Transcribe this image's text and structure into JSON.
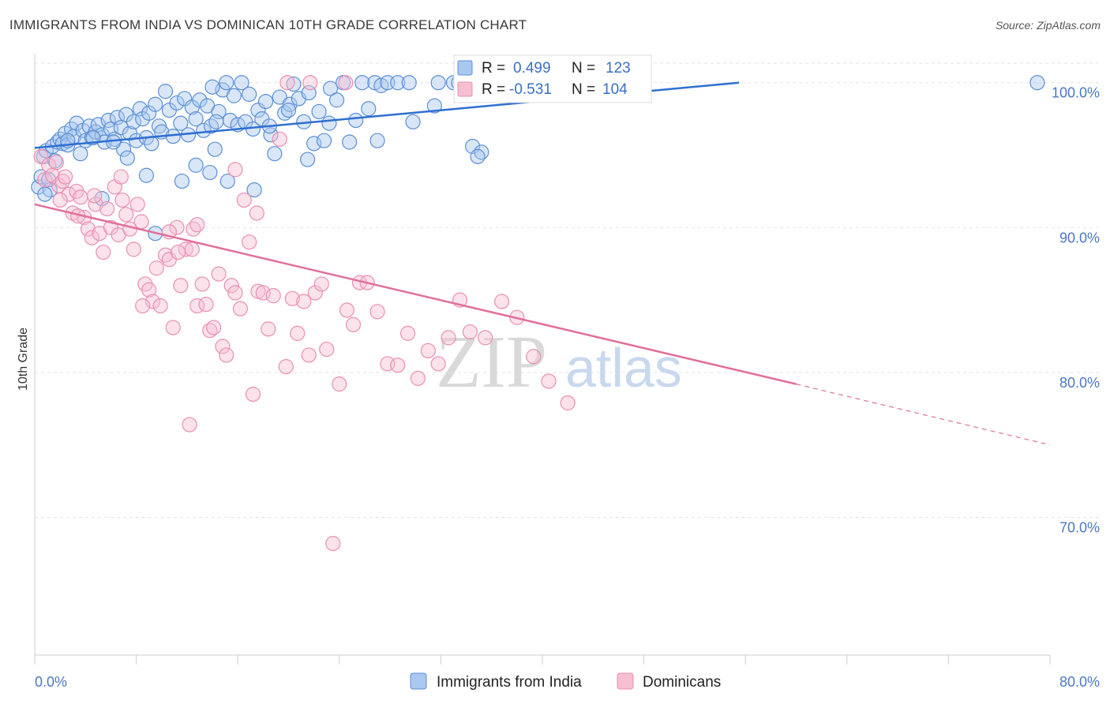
{
  "header": {
    "title": "IMMIGRANTS FROM INDIA VS DOMINICAN 10TH GRADE CORRELATION CHART",
    "source": "Source: ZipAtlas.com"
  },
  "watermark": {
    "zip": "ZIP",
    "atlas": "atlas"
  },
  "legend": {
    "india": {
      "r_label": "R =",
      "r_value": "0.499",
      "n_label": "N =",
      "n_value": "123"
    },
    "dominican": {
      "r_label": "R =",
      "r_value": "-0.531",
      "n_label": "N =",
      "n_value": "104"
    }
  },
  "bottom_legend": {
    "india": "Immigrants from India",
    "dominican": "Dominicans"
  },
  "colors": {
    "india_fill": "#a9c8f0",
    "india_stroke": "#5b8fd6",
    "india_line": "#2f6fd0",
    "dominican_fill": "#f6bfd2",
    "dominican_stroke": "#ea8fb0",
    "dominican_line": "#e0709a",
    "tick_text": "#4a78c4",
    "grid": "#e3e3e3"
  },
  "chart_data": {
    "type": "scatter",
    "title": "IMMIGRANTS FROM INDIA VS DOMINICAN 10TH GRADE CORRELATION CHART",
    "xlabel": "",
    "ylabel": "10th Grade",
    "xlim": [
      0,
      80
    ],
    "ylim": [
      60.5,
      102
    ],
    "x_ticks": [
      0,
      8,
      16,
      24,
      32,
      40,
      48,
      56,
      64,
      72,
      80
    ],
    "x_tick_labels": [
      "0.0%",
      "",
      "",
      "",
      "",
      "",
      "",
      "",
      "",
      "",
      "80.0%"
    ],
    "y_ticks": [
      70,
      80,
      90,
      100
    ],
    "y_tick_labels": [
      "70.0%",
      "80.0%",
      "90.0%",
      "100.0%"
    ],
    "grid": true,
    "legend_position": "top-center",
    "series": [
      {
        "name": "Immigrants from India",
        "R": 0.499,
        "N": 123,
        "trend": {
          "x0": 0,
          "y0": 95.5,
          "x1": 55.5,
          "y1": 100.0
        },
        "points": [
          [
            0.3,
            92.8
          ],
          [
            0.5,
            93.5
          ],
          [
            0.7,
            94.9
          ],
          [
            0.9,
            95.3
          ],
          [
            1.1,
            93.3
          ],
          [
            1.2,
            92.6
          ],
          [
            1.4,
            95.6
          ],
          [
            1.6,
            94.6
          ],
          [
            1.8,
            95.9
          ],
          [
            2.0,
            96.1
          ],
          [
            2.2,
            95.8
          ],
          [
            2.4,
            96.5
          ],
          [
            2.6,
            95.7
          ],
          [
            2.9,
            96.8
          ],
          [
            3.1,
            96.3
          ],
          [
            3.3,
            97.2
          ],
          [
            3.6,
            95.1
          ],
          [
            3.8,
            96.7
          ],
          [
            4.0,
            96.0
          ],
          [
            4.3,
            97.0
          ],
          [
            4.5,
            96.2
          ],
          [
            4.8,
            96.6
          ],
          [
            5.0,
            97.1
          ],
          [
            5.3,
            96.4
          ],
          [
            5.5,
            95.9
          ],
          [
            5.8,
            97.4
          ],
          [
            6.0,
            96.8
          ],
          [
            6.3,
            96.1
          ],
          [
            6.5,
            97.6
          ],
          [
            6.8,
            96.9
          ],
          [
            7.0,
            95.4
          ],
          [
            7.2,
            97.8
          ],
          [
            7.5,
            96.5
          ],
          [
            7.8,
            97.3
          ],
          [
            8.0,
            96.0
          ],
          [
            8.3,
            98.2
          ],
          [
            8.5,
            97.5
          ],
          [
            8.8,
            96.2
          ],
          [
            9.0,
            97.9
          ],
          [
            9.2,
            95.8
          ],
          [
            9.5,
            98.5
          ],
          [
            9.8,
            97.0
          ],
          [
            10.0,
            96.6
          ],
          [
            10.3,
            99.4
          ],
          [
            10.6,
            98.1
          ],
          [
            10.9,
            96.3
          ],
          [
            11.2,
            98.6
          ],
          [
            11.5,
            97.2
          ],
          [
            11.8,
            98.9
          ],
          [
            12.1,
            96.4
          ],
          [
            12.4,
            98.3
          ],
          [
            12.7,
            97.5
          ],
          [
            13.0,
            98.8
          ],
          [
            13.3,
            96.7
          ],
          [
            13.6,
            98.4
          ],
          [
            13.9,
            97.0
          ],
          [
            14.2,
            95.4
          ],
          [
            14.5,
            98.0
          ],
          [
            14.8,
            99.5
          ],
          [
            15.1,
            100.0
          ],
          [
            15.4,
            97.4
          ],
          [
            15.7,
            99.1
          ],
          [
            16.0,
            97.1
          ],
          [
            16.3,
            100.0
          ],
          [
            16.6,
            97.3
          ],
          [
            16.9,
            99.2
          ],
          [
            17.2,
            96.8
          ],
          [
            17.6,
            98.1
          ],
          [
            17.9,
            97.5
          ],
          [
            18.2,
            98.7
          ],
          [
            18.6,
            96.4
          ],
          [
            18.9,
            95.1
          ],
          [
            19.3,
            99.0
          ],
          [
            19.7,
            97.9
          ],
          [
            20.1,
            98.5
          ],
          [
            20.4,
            99.9
          ],
          [
            20.8,
            98.9
          ],
          [
            21.2,
            97.3
          ],
          [
            21.6,
            99.3
          ],
          [
            22.0,
            95.8
          ],
          [
            22.4,
            98.0
          ],
          [
            22.8,
            96.0
          ],
          [
            23.3,
            99.6
          ],
          [
            23.8,
            98.8
          ],
          [
            24.3,
            100.0
          ],
          [
            24.8,
            95.9
          ],
          [
            25.3,
            97.4
          ],
          [
            25.8,
            100.0
          ],
          [
            26.3,
            98.2
          ],
          [
            26.8,
            100.0
          ],
          [
            27.3,
            99.8
          ],
          [
            27.8,
            100.0
          ],
          [
            28.6,
            100.0
          ],
          [
            29.5,
            100.0
          ],
          [
            31.5,
            98.4
          ],
          [
            33.0,
            100.0
          ],
          [
            34.5,
            95.6
          ],
          [
            35.2,
            95.2
          ],
          [
            34.9,
            94.9
          ],
          [
            7.3,
            94.8
          ],
          [
            9.5,
            89.6
          ],
          [
            12.7,
            94.3
          ],
          [
            13.8,
            93.8
          ],
          [
            15.2,
            93.2
          ],
          [
            17.3,
            92.6
          ],
          [
            11.6,
            93.2
          ],
          [
            8.8,
            93.6
          ],
          [
            5.3,
            92.0
          ],
          [
            14.0,
            99.7
          ],
          [
            14.3,
            97.3
          ],
          [
            20.0,
            98.1
          ],
          [
            21.5,
            94.7
          ],
          [
            18.5,
            97.0
          ],
          [
            27.0,
            96.0
          ],
          [
            29.8,
            97.3
          ],
          [
            23.2,
            97.2
          ],
          [
            31.8,
            100.0
          ],
          [
            33.4,
            100.0
          ],
          [
            79.0,
            100.0
          ],
          [
            0.8,
            92.3
          ],
          [
            2.6,
            96.0
          ],
          [
            4.6,
            96.2
          ],
          [
            6.2,
            95.9
          ]
        ]
      },
      {
        "name": "Dominicans",
        "R": -0.531,
        "N": 104,
        "trend": {
          "x0": 0,
          "y0": 91.6,
          "x1": 60.0,
          "y1": 79.2,
          "dash_x1": 80.0,
          "dash_y1": 75.0
        },
        "points": [
          [
            0.5,
            94.9
          ],
          [
            0.8,
            93.3
          ],
          [
            1.1,
            94.3
          ],
          [
            1.4,
            93.6
          ],
          [
            1.7,
            94.5
          ],
          [
            1.9,
            92.9
          ],
          [
            2.2,
            93.2
          ],
          [
            2.4,
            93.5
          ],
          [
            2.7,
            92.3
          ],
          [
            3.0,
            91.0
          ],
          [
            3.3,
            92.5
          ],
          [
            3.6,
            92.1
          ],
          [
            3.9,
            90.7
          ],
          [
            4.2,
            89.9
          ],
          [
            4.5,
            89.3
          ],
          [
            4.8,
            91.6
          ],
          [
            5.1,
            89.6
          ],
          [
            5.4,
            88.3
          ],
          [
            5.7,
            91.3
          ],
          [
            6.0,
            90.0
          ],
          [
            6.3,
            92.8
          ],
          [
            6.6,
            89.5
          ],
          [
            6.9,
            91.9
          ],
          [
            7.2,
            90.9
          ],
          [
            7.5,
            89.9
          ],
          [
            7.8,
            88.5
          ],
          [
            8.1,
            91.6
          ],
          [
            8.4,
            90.4
          ],
          [
            8.7,
            86.1
          ],
          [
            9.0,
            85.7
          ],
          [
            9.3,
            84.9
          ],
          [
            9.6,
            87.2
          ],
          [
            9.9,
            84.6
          ],
          [
            10.3,
            88.1
          ],
          [
            10.6,
            87.8
          ],
          [
            10.9,
            83.1
          ],
          [
            11.2,
            90.0
          ],
          [
            11.5,
            86.0
          ],
          [
            11.9,
            88.5
          ],
          [
            12.2,
            76.4
          ],
          [
            12.5,
            89.9
          ],
          [
            12.8,
            84.6
          ],
          [
            13.2,
            86.1
          ],
          [
            13.5,
            84.7
          ],
          [
            13.8,
            82.9
          ],
          [
            14.1,
            83.1
          ],
          [
            14.5,
            86.8
          ],
          [
            14.8,
            81.8
          ],
          [
            15.1,
            81.2
          ],
          [
            15.5,
            86.0
          ],
          [
            15.8,
            85.5
          ],
          [
            16.2,
            84.4
          ],
          [
            16.5,
            91.9
          ],
          [
            16.9,
            89.0
          ],
          [
            17.2,
            78.5
          ],
          [
            17.6,
            85.6
          ],
          [
            18.0,
            85.5
          ],
          [
            18.4,
            83.0
          ],
          [
            18.8,
            85.3
          ],
          [
            19.3,
            96.1
          ],
          [
            19.8,
            80.4
          ],
          [
            20.3,
            85.1
          ],
          [
            20.7,
            82.7
          ],
          [
            21.2,
            84.9
          ],
          [
            21.6,
            81.2
          ],
          [
            22.1,
            85.5
          ],
          [
            22.6,
            86.1
          ],
          [
            23.0,
            81.6
          ],
          [
            23.5,
            68.2
          ],
          [
            24.0,
            79.2
          ],
          [
            24.6,
            84.3
          ],
          [
            25.1,
            83.3
          ],
          [
            25.6,
            86.2
          ],
          [
            26.2,
            86.2
          ],
          [
            27.0,
            84.2
          ],
          [
            27.8,
            80.6
          ],
          [
            28.6,
            80.5
          ],
          [
            29.4,
            82.7
          ],
          [
            30.2,
            79.6
          ],
          [
            31.0,
            81.5
          ],
          [
            31.8,
            80.6
          ],
          [
            32.6,
            82.4
          ],
          [
            33.5,
            85.0
          ],
          [
            34.3,
            82.8
          ],
          [
            35.5,
            82.4
          ],
          [
            36.8,
            84.9
          ],
          [
            38.0,
            83.8
          ],
          [
            39.3,
            81.1
          ],
          [
            40.5,
            79.4
          ],
          [
            42.0,
            77.9
          ],
          [
            8.5,
            84.6
          ],
          [
            11.3,
            88.3
          ],
          [
            12.8,
            90.2
          ],
          [
            10.6,
            89.7
          ],
          [
            6.8,
            93.5
          ],
          [
            4.7,
            92.2
          ],
          [
            3.4,
            90.8
          ],
          [
            2.0,
            91.9
          ],
          [
            12.4,
            88.5
          ],
          [
            17.5,
            91.0
          ],
          [
            15.8,
            94.0
          ],
          [
            21.7,
            100.0
          ],
          [
            24.5,
            100.0
          ],
          [
            19.9,
            100.0
          ]
        ]
      }
    ]
  }
}
